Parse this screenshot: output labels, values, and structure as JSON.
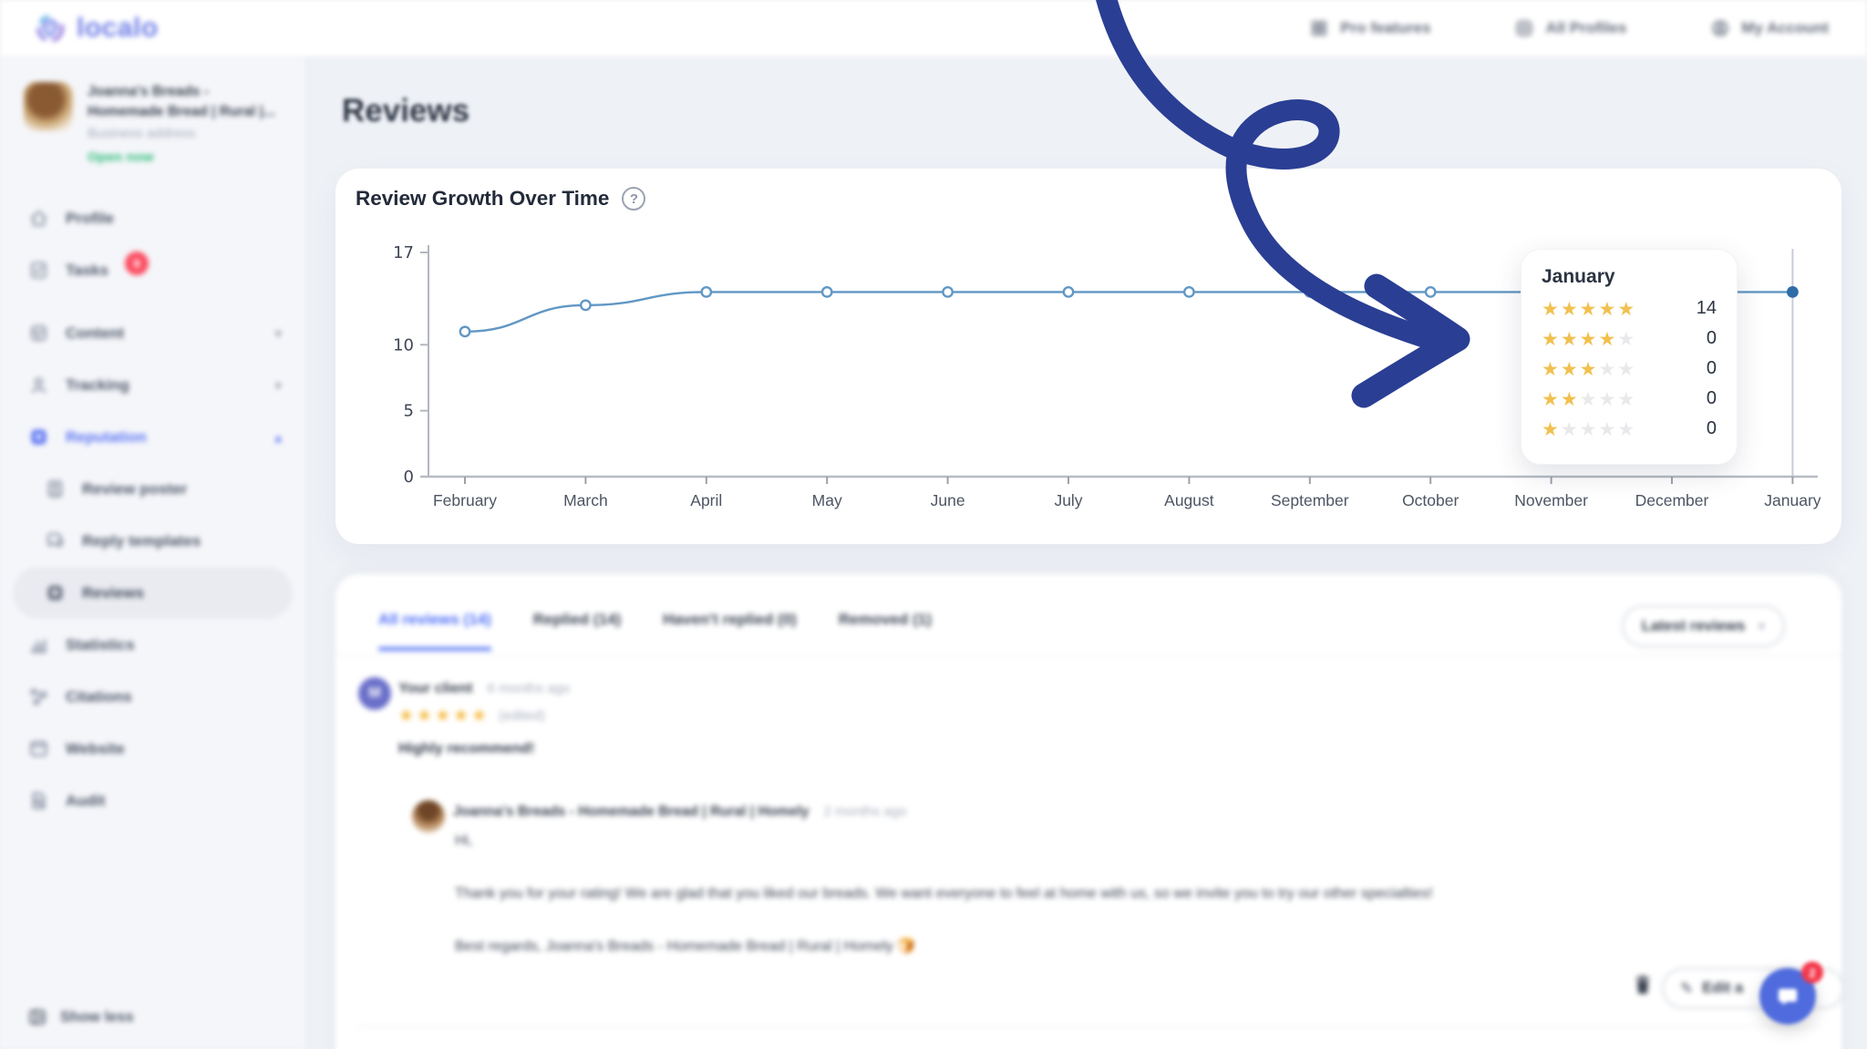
{
  "brand": {
    "logo_text": "localo"
  },
  "header": {
    "nav": [
      {
        "label": "Pro features",
        "icon": "pro-features-icon"
      },
      {
        "label": "All Profiles",
        "icon": "all-profiles-icon"
      },
      {
        "label": "My Account",
        "icon": "my-account-icon"
      }
    ]
  },
  "sidebar": {
    "profile": {
      "name": "Joanna's Breads - Homemade Bread | Rural |...",
      "address_label": "Business address",
      "status": "Open now"
    },
    "items": [
      {
        "label": "Profile",
        "icon": "home-icon"
      },
      {
        "label": "Tasks",
        "icon": "tasks-icon",
        "badge": "9"
      },
      {
        "label": "Content",
        "icon": "content-icon",
        "chevron": "down",
        "gap": true
      },
      {
        "label": "Tracking",
        "icon": "tracking-icon",
        "chevron": "down"
      },
      {
        "label": "Reputation",
        "icon": "reputation-icon",
        "chevron": "up",
        "active": true
      },
      {
        "label": "Review poster",
        "icon": "review-poster-icon",
        "sub": true
      },
      {
        "label": "Reply templates",
        "icon": "reply-templates-icon",
        "sub": true
      },
      {
        "label": "Reviews",
        "icon": "reviews-icon",
        "sub": true,
        "selected": true
      },
      {
        "label": "Statistics",
        "icon": "statistics-icon"
      },
      {
        "label": "Citations",
        "icon": "citations-icon"
      },
      {
        "label": "Website",
        "icon": "website-icon"
      },
      {
        "label": "Audit",
        "icon": "audit-icon"
      }
    ],
    "show_less": "Show less"
  },
  "main": {
    "page_title": "Reviews",
    "chart_card": {
      "title": "Review Growth Over Time",
      "help_icon": "?"
    },
    "tooltip": {
      "title": "January",
      "rows": [
        {
          "stars": 5,
          "count": "14"
        },
        {
          "stars": 4,
          "count": "0"
        },
        {
          "stars": 3,
          "count": "0"
        },
        {
          "stars": 2,
          "count": "0"
        },
        {
          "stars": 1,
          "count": "0"
        }
      ]
    },
    "tabs": [
      {
        "label": "All reviews (14)",
        "active": true
      },
      {
        "label": "Replied (14)"
      },
      {
        "label": "Haven't replied (0)"
      },
      {
        "label": "Removed (1)"
      }
    ],
    "sort_label": "Latest reviews",
    "review": {
      "avatar_initial": "M",
      "author": "Your client",
      "time": "6 months ago",
      "rating": 5,
      "edited_label": "(edited)",
      "text": "Highly recommend!",
      "reply": {
        "author": "Joanna's Breads - Homemade Bread | Rural | Homely",
        "time": "2 months ago",
        "greeting": "Hi,",
        "body": "Thank you for your rating! We are glad that you liked our breads. We want everyone to feel at home with us, so we invite you to try our other specialties!",
        "signoff": "Best regards, Joanna's Breads - Homemade Bread | Rural | Homely 🍞"
      },
      "edit_label": "Edit a"
    }
  },
  "chat": {
    "badge": "2"
  },
  "chart_data": {
    "type": "line",
    "title": "Review Growth Over Time",
    "x": [
      "February",
      "March",
      "April",
      "May",
      "June",
      "July",
      "August",
      "September",
      "October",
      "November",
      "December",
      "January"
    ],
    "values": [
      11,
      13,
      14,
      14,
      14,
      14,
      14,
      14,
      14,
      14,
      14,
      14
    ],
    "ylim": [
      0,
      17
    ],
    "yticks": [
      0,
      5,
      10,
      17
    ],
    "grid": false,
    "legend": false,
    "line_color": "#6197c4",
    "active_point": {
      "x": "January",
      "y": 14
    }
  },
  "colors": {
    "accent_blue": "#4a6cf7",
    "sidebar_active": "#5b74f3",
    "arrow_navy": "#2a3e94",
    "star_yellow": "#f1c04e",
    "star_empty": "#e9e9ec",
    "open_green": "#2fbc79",
    "badge_red": "#fb4b60",
    "chart_line": "#6197c4",
    "active_dot": "#2e6da6"
  }
}
